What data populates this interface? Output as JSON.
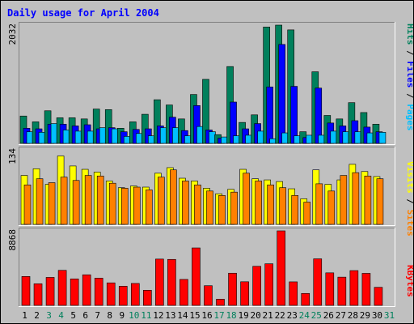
{
  "title": "Daily usage for April 2004",
  "colors": {
    "background": "#c0c0c0",
    "title": "#0000ff",
    "hits": "#00805c",
    "files": "#0000ff",
    "pages": "#00c0ff",
    "visits": "#ffff00",
    "sites": "#ff8000",
    "kbytes": "#ff0000",
    "weekday_label": "#000000",
    "weekend_label": "#00805c"
  },
  "chart_data": [
    {
      "type": "bar",
      "name": "hits-files-pages",
      "ymax_label": "2032",
      "ymax": 2032,
      "right_label": {
        "hits": "Hits",
        "files": "Files",
        "pages": "Pages"
      },
      "series": [
        {
          "name": "Hits",
          "values": [
            470,
            370,
            560,
            440,
            440,
            420,
            590,
            580,
            260,
            370,
            500,
            750,
            660,
            420,
            840,
            1100,
            150,
            1320,
            360,
            490,
            2000,
            2032,
            1950,
            200,
            1230,
            480,
            420,
            700,
            530,
            330
          ]
        },
        {
          "name": "Files",
          "values": [
            260,
            250,
            330,
            330,
            300,
            320,
            250,
            270,
            200,
            240,
            250,
            300,
            450,
            220,
            650,
            230,
            90,
            710,
            250,
            340,
            970,
            1700,
            980,
            100,
            950,
            350,
            300,
            390,
            280,
            200
          ]
        },
        {
          "name": "Pages",
          "values": [
            200,
            190,
            340,
            230,
            210,
            210,
            270,
            250,
            120,
            170,
            130,
            270,
            270,
            130,
            290,
            200,
            110,
            130,
            140,
            210,
            80,
            180,
            130,
            140,
            140,
            210,
            200,
            200,
            180,
            190
          ]
        }
      ]
    },
    {
      "type": "bar",
      "name": "visits-sites",
      "ymax_label": "134",
      "ymax": 134,
      "right_label": {
        "visits": "Visits",
        "sites": "Sites"
      },
      "series": [
        {
          "name": "Visits",
          "values": [
            88,
            100,
            72,
            123,
            105,
            99,
            94,
            78,
            66,
            69,
            67,
            92,
            102,
            83,
            78,
            65,
            55,
            63,
            99,
            82,
            80,
            77,
            64,
            46,
            98,
            72,
            80,
            108,
            95,
            86
          ]
        },
        {
          "name": "Sites",
          "values": [
            71,
            82,
            75,
            85,
            79,
            88,
            87,
            74,
            65,
            67,
            62,
            85,
            98,
            78,
            71,
            60,
            52,
            58,
            92,
            78,
            71,
            66,
            52,
            40,
            73,
            60,
            88,
            93,
            87,
            82
          ]
        }
      ]
    },
    {
      "type": "bar",
      "name": "kbytes",
      "ymax_label": "8868",
      "ymax": 8868,
      "right_label": {
        "kbytes": "KBytes"
      },
      "series": [
        {
          "name": "KBytes",
          "values": [
            3440,
            2570,
            3330,
            4170,
            3150,
            3640,
            3240,
            2680,
            2280,
            2610,
            1800,
            5510,
            5470,
            3090,
            6840,
            2340,
            730,
            3830,
            2810,
            4650,
            4950,
            8868,
            2800,
            1420,
            5540,
            3870,
            3360,
            4140,
            3810,
            2150
          ]
        }
      ]
    }
  ],
  "days": [
    "1",
    "2",
    "3",
    "4",
    "5",
    "6",
    "7",
    "8",
    "9",
    "10",
    "11",
    "12",
    "13",
    "14",
    "15",
    "16",
    "17",
    "18",
    "19",
    "20",
    "21",
    "22",
    "23",
    "24",
    "25",
    "26",
    "27",
    "28",
    "29",
    "30",
    "31"
  ],
  "weekend_days": [
    "3",
    "4",
    "10",
    "11",
    "17",
    "18",
    "24",
    "25",
    "31"
  ]
}
